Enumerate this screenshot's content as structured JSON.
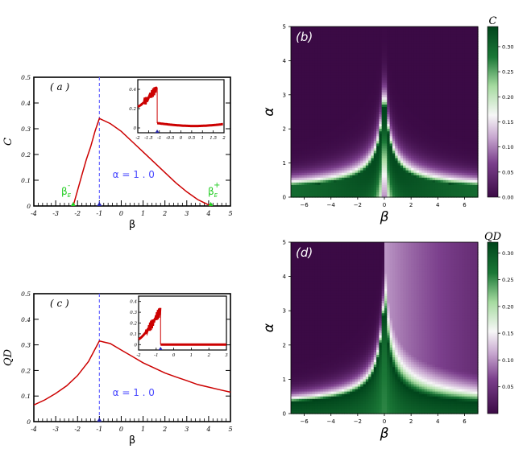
{
  "chart_data": [
    {
      "panel": "(a)",
      "type": "line",
      "ylabel": "C",
      "xlabel": "β",
      "xlim": [
        -4,
        5
      ],
      "ylim": [
        0,
        0.5
      ],
      "xticks": [
        "-4",
        "-3",
        "-2",
        "-1",
        "0",
        "1",
        "2",
        "3",
        "4",
        "5"
      ],
      "yticks": [
        "0",
        "0.1",
        "0.2",
        "0.3",
        "0.4",
        "0.5"
      ],
      "annotation": "α = 1 . 0",
      "markers": {
        "beta_E_minus": "β_E^-",
        "beta_E_plus": "β_E^+"
      },
      "critical_line_x": -1,
      "x": [
        -2.2,
        -2.0,
        -1.8,
        -1.6,
        -1.4,
        -1.2,
        -1.0,
        -0.5,
        0,
        0.5,
        1,
        1.5,
        2,
        2.5,
        3,
        3.5,
        4.1
      ],
      "y": [
        0,
        0.06,
        0.12,
        0.18,
        0.23,
        0.29,
        0.34,
        0.32,
        0.29,
        0.25,
        0.21,
        0.17,
        0.13,
        0.09,
        0.055,
        0.025,
        0
      ],
      "inset": {
        "xlim": [
          -2,
          2
        ],
        "ylim": [
          -0.05,
          0.5
        ],
        "xticks": [
          "-2",
          "-1.5",
          "-1",
          "-0.5",
          "0",
          "0.5",
          "1",
          "1.5",
          "2"
        ],
        "yticks": [
          "0",
          "0.2",
          "0.4"
        ]
      }
    },
    {
      "panel": "(b)",
      "type": "heatmap",
      "xlabel": "β",
      "ylabel": "α",
      "colorbar_label": "C",
      "xlim": [
        -7,
        7
      ],
      "ylim": [
        0,
        5
      ],
      "xticks": [
        "−6",
        "−4",
        "−2",
        "0",
        "2",
        "4",
        "6"
      ],
      "yticks": [
        "0",
        "1",
        "2",
        "3",
        "4",
        "5"
      ],
      "colorbar_ticks": [
        "0.00",
        "0.05",
        "0.10",
        "0.15",
        "0.20",
        "0.25",
        "0.30"
      ],
      "colorbar_range": [
        0,
        0.34
      ],
      "colormap": [
        "#3b0a45",
        "#7b3f8c",
        "#c7a6cf",
        "#f7f7f7",
        "#a6dba0",
        "#1b7837",
        "#00441b"
      ]
    },
    {
      "panel": "(c)",
      "type": "line",
      "ylabel": "QD",
      "xlabel": "β",
      "xlim": [
        -4,
        5
      ],
      "ylim": [
        0,
        0.5
      ],
      "xticks": [
        "-4",
        "-3",
        "-2",
        "-1",
        "0",
        "1",
        "2",
        "3",
        "4",
        "5"
      ],
      "yticks": [
        "0",
        "0.1",
        "0.2",
        "0.3",
        "0.4",
        "0.5"
      ],
      "annotation": "α = 1 . 0",
      "critical_line_x": -1,
      "x": [
        -4,
        -3.5,
        -3,
        -2.5,
        -2,
        -1.5,
        -1,
        -0.5,
        0,
        0.5,
        1,
        1.5,
        2,
        2.5,
        3,
        3.5,
        4,
        4.5,
        5
      ],
      "y": [
        0.065,
        0.085,
        0.11,
        0.14,
        0.18,
        0.235,
        0.315,
        0.305,
        0.28,
        0.255,
        0.23,
        0.21,
        0.19,
        0.175,
        0.16,
        0.145,
        0.135,
        0.125,
        0.115
      ],
      "inset": {
        "xlim": [
          -2,
          3
        ],
        "ylim": [
          -0.05,
          0.45
        ],
        "xticks": [
          "-2",
          "-1",
          "0",
          "1",
          "2",
          "3"
        ],
        "yticks": [
          "0",
          "0.1",
          "0.2",
          "0.3",
          "0.4"
        ]
      }
    },
    {
      "panel": "(d)",
      "type": "heatmap",
      "xlabel": "β",
      "ylabel": "α",
      "colorbar_label": "QD",
      "xlim": [
        -7,
        7
      ],
      "ylim": [
        0,
        5
      ],
      "xticks": [
        "−6",
        "−4",
        "−2",
        "0",
        "2",
        "4",
        "6"
      ],
      "yticks": [
        "0",
        "1",
        "2",
        "3",
        "4",
        "5"
      ],
      "colorbar_ticks": [
        "0.05",
        "0.10",
        "0.15",
        "0.20",
        "0.25",
        "0.30"
      ],
      "colorbar_range": [
        0,
        0.32
      ],
      "colormap": [
        "#3b0a45",
        "#7b3f8c",
        "#c7a6cf",
        "#f7f7f7",
        "#a6dba0",
        "#1b7837",
        "#00441b"
      ]
    }
  ],
  "colors": {
    "curve": "#cc0000",
    "dashed": "#6666ff",
    "annotation": "#4a4aff",
    "marker_green": "#22cc22",
    "marker_blue": "#2222aa"
  }
}
